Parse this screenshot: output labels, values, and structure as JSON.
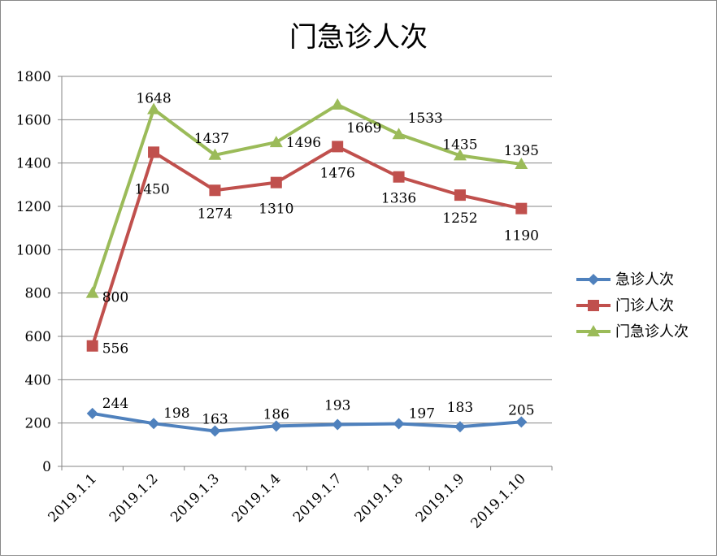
{
  "chart_data": {
    "type": "line",
    "title": "门急诊人次",
    "categories": [
      "2019.1.1",
      "2019.1.2",
      "2019.1.3",
      "2019.1.4",
      "2019.1.7",
      "2019.1.8",
      "2019.1.9",
      "2019.1.10"
    ],
    "ylim": [
      0,
      1800
    ],
    "yticks": [
      0,
      200,
      400,
      600,
      800,
      1000,
      1200,
      1400,
      1600,
      1800
    ],
    "grid": true,
    "legend_position": "right",
    "series": [
      {
        "name": "急诊人次",
        "values": [
          244,
          198,
          163,
          186,
          193,
          197,
          183,
          205
        ],
        "color": "#4f81bd",
        "marker": "diamond"
      },
      {
        "name": "门诊人次",
        "values": [
          556,
          1450,
          1274,
          1310,
          1476,
          1336,
          1252,
          1190
        ],
        "color": "#c0504d",
        "marker": "square"
      },
      {
        "name": "门急诊人次",
        "values": [
          800,
          1648,
          1437,
          1496,
          1669,
          1533,
          1435,
          1395
        ],
        "color": "#9bbb59",
        "marker": "triangle"
      }
    ]
  }
}
